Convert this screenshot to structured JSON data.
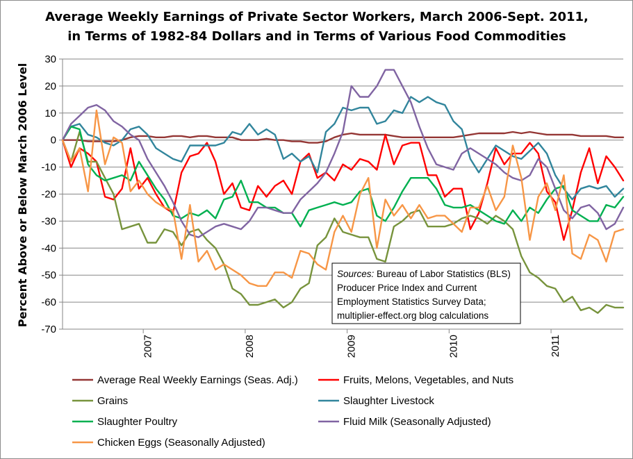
{
  "chart_data": {
    "type": "line",
    "title": [
      "Average Weekly Earnings of Private Sector Workers, March 2006-Sept. 2011,",
      "in Terms of 1982-84 Dollars and in Terms of Various Food Commodities"
    ],
    "ylabel": "Percent Above or Below March 2006 Level",
    "xlabel": "",
    "ylim": [
      -70,
      30
    ],
    "yticks": [
      30,
      20,
      10,
      0,
      -10,
      -20,
      -30,
      -40,
      -50,
      -60,
      -70
    ],
    "x_tick_labels": [
      "2007",
      "2008",
      "2009",
      "2010",
      "2011"
    ],
    "x_tick_index": [
      10,
      22,
      34,
      46,
      58
    ],
    "x_boundary_index": [
      9.5,
      21.5,
      33.5,
      45.5,
      57.5
    ],
    "x_range_index": [
      0,
      66
    ],
    "grid": "horizontal",
    "legend_position": "bottom",
    "series": [
      {
        "name": "Average Real Weekly Earnings (Seas. Adj.)",
        "color": "#943634",
        "values": [
          0,
          0,
          0,
          -0.5,
          -0.5,
          -0.5,
          -0.5,
          0,
          1,
          1.5,
          1.5,
          1,
          1,
          1.5,
          1.5,
          1,
          1.5,
          1.5,
          1,
          1,
          1,
          0,
          0,
          0,
          0.5,
          0,
          0,
          -0.5,
          -0.5,
          -1,
          -1,
          -0.5,
          1,
          2,
          2.5,
          2,
          2,
          2,
          2,
          1.5,
          1,
          1,
          1,
          1,
          1,
          1,
          1,
          1.5,
          2,
          2.5,
          2.5,
          2.5,
          2.5,
          3,
          2.5,
          3,
          2.5,
          2,
          2,
          2,
          2,
          1.5,
          1.5,
          1.5,
          1.5,
          1,
          1
        ]
      },
      {
        "name": "Fruits, Melons, Vegetables, and Nuts",
        "color": "#ff0000",
        "values": [
          0,
          -10,
          -3,
          -5,
          -8,
          -21,
          -22,
          -18,
          -3,
          -18,
          -14,
          -20,
          -25,
          -27,
          -12,
          -6,
          -5,
          -1,
          -8,
          -20,
          -16,
          -25,
          -26,
          -17,
          -21,
          -17,
          -15,
          -20,
          -8,
          -5,
          -14,
          -12,
          -15,
          -9,
          -11,
          -7,
          -8,
          -11,
          2,
          -9,
          -2,
          -1,
          -1,
          -13,
          -13,
          -21,
          -18,
          -18,
          -33,
          -27,
          -16,
          -3,
          -9,
          -5,
          -5,
          -1,
          -5,
          -19,
          -23,
          -37,
          -26,
          -12,
          -3,
          -16,
          -6,
          -10,
          -15
        ]
      },
      {
        "name": "Grains",
        "color": "#77933c",
        "values": [
          0,
          -8,
          3,
          -8,
          -8,
          -14,
          -20,
          -33,
          -32,
          -31,
          -38,
          -38,
          -33,
          -34,
          -39,
          -34,
          -33,
          -37,
          -40,
          -46,
          -55,
          -57,
          -61,
          -61,
          -60,
          -59,
          -62,
          -60,
          -55,
          -53,
          -39,
          -36,
          -29,
          -34,
          -35,
          -36,
          -36,
          -44,
          -45,
          -32,
          -30,
          -27,
          -26,
          -32,
          -32,
          -32,
          -31,
          -29,
          -28,
          -29,
          -31,
          -28,
          -30,
          -33,
          -43,
          -49,
          -51,
          -54,
          -55,
          -60,
          -58,
          -63,
          -62,
          -64,
          -61,
          -62,
          -62
        ]
      },
      {
        "name": "Slaughter Livestock",
        "color": "#31859c",
        "values": [
          0,
          5,
          6,
          2,
          1,
          -1,
          -2,
          0,
          4,
          5,
          2,
          -3,
          -5,
          -7,
          -8,
          -2,
          -2,
          -2,
          -2,
          -1,
          3,
          2,
          6,
          2,
          4,
          2,
          -7,
          -5,
          -8,
          -6,
          -12,
          3,
          6,
          12,
          11,
          12,
          12,
          6,
          7,
          11,
          10,
          16,
          14,
          16,
          14,
          13,
          7,
          4,
          -7,
          -12,
          -7,
          -2,
          -4,
          -6,
          -7,
          -4,
          -1,
          -5,
          -13,
          -18,
          -22,
          -18,
          -17,
          -18,
          -17,
          -21,
          -18
        ]
      },
      {
        "name": "Slaughter Poultry",
        "color": "#00b050",
        "values": [
          0,
          5,
          4,
          -9,
          -13,
          -15,
          -14,
          -13,
          -15,
          -8,
          -13,
          -18,
          -22,
          -28,
          -29,
          -27,
          -28,
          -26,
          -29,
          -22,
          -21,
          -15,
          -23,
          -23,
          -25,
          -25,
          -27,
          -27,
          -32,
          -26,
          -25,
          -24,
          -23,
          -24,
          -23,
          -19,
          -18,
          -28,
          -30,
          -25,
          -19,
          -14,
          -14,
          -14,
          -18,
          -24,
          -25,
          -25,
          -24,
          -26,
          -28,
          -30,
          -31,
          -26,
          -30,
          -25,
          -27,
          -22,
          -18,
          -17,
          -26,
          -28,
          -30,
          -30,
          -24,
          -25,
          -21
        ]
      },
      {
        "name": "Fluid Milk (Seasonally Adjusted)",
        "color": "#8064a2",
        "values": [
          0,
          6,
          9,
          12,
          13,
          11,
          7,
          5,
          2,
          0,
          -7,
          -12,
          -17,
          -23,
          -30,
          -35,
          -36,
          -34,
          -32,
          -31,
          -32,
          -33,
          -30,
          -25,
          -25,
          -26,
          -27,
          -27,
          -22,
          -19,
          -16,
          -12,
          -5,
          3,
          20,
          16,
          16,
          20,
          26,
          26,
          20,
          14,
          5,
          -3,
          -9,
          -10,
          -11,
          -5,
          -3,
          -5,
          -7,
          -9,
          -12,
          -14,
          -15,
          -13,
          -7,
          -10,
          -18,
          -26,
          -29,
          -25,
          -24,
          -27,
          -33,
          -31,
          -25
        ]
      },
      {
        "name": "Chicken Eggs (Seasonally Adjusted)",
        "color": "#f79646",
        "values": [
          0,
          -8,
          -3,
          -19,
          11,
          -9,
          1,
          -1,
          -19,
          -15,
          -20,
          -23,
          -25,
          -26,
          -44,
          -24,
          -45,
          -41,
          -48,
          -46,
          -48,
          -50,
          -53,
          -54,
          -54,
          -49,
          -49,
          -51,
          -41,
          -42,
          -46,
          -48,
          -34,
          -28,
          -34,
          -20,
          -14,
          -40,
          -22,
          -28,
          -24,
          -29,
          -24,
          -29,
          -28,
          -28,
          -31,
          -34,
          -25,
          -25,
          -17,
          -26,
          -21,
          -2,
          -14,
          -37,
          -21,
          -16,
          -26,
          -13,
          -42,
          -44,
          -35,
          -37,
          -45,
          -34,
          -33
        ]
      }
    ]
  },
  "source_box": {
    "label_italic": "Sources:",
    "line1_rest": " Bureau of Labor Statistics (BLS)",
    "line2": "Producer Price Index and Current",
    "line3": "Employment Statistics Survey Data;",
    "line4": "multiplier-effect.org blog calculations"
  }
}
